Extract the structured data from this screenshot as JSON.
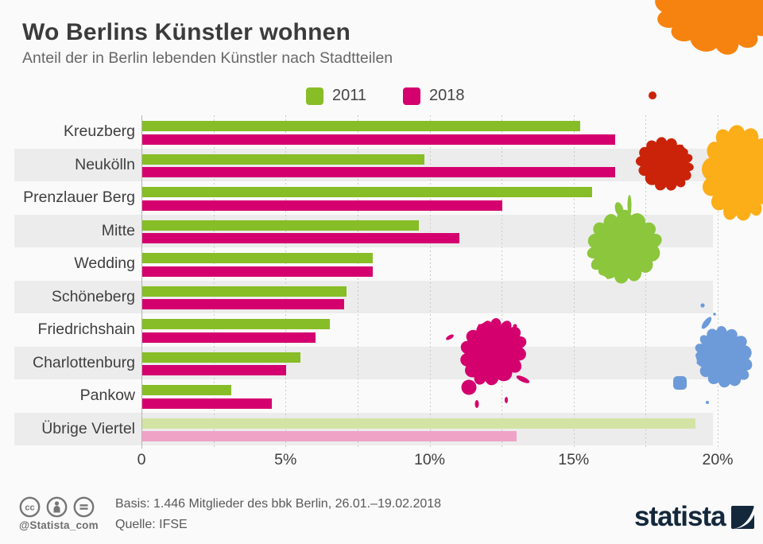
{
  "title": "Wo Berlins Künstler wohnen",
  "subtitle": "Anteil der in Berlin lebenden Künstler nach Stadtteilen",
  "legend": [
    {
      "label": "2011",
      "color": "#87bd27"
    },
    {
      "label": "2018",
      "color": "#d4006e"
    }
  ],
  "chart_data": {
    "type": "bar",
    "orientation": "horizontal",
    "categories": [
      "Kreuzberg",
      "Neukölln",
      "Prenzlauer Berg",
      "Mitte",
      "Wedding",
      "Schöneberg",
      "Friedrichshain",
      "Charlottenburg",
      "Pankow",
      "Übrige Viertel"
    ],
    "series": [
      {
        "name": "2011",
        "values": [
          15.2,
          9.8,
          15.6,
          9.6,
          8.0,
          7.1,
          6.5,
          5.5,
          3.1,
          19.2
        ]
      },
      {
        "name": "2018",
        "values": [
          16.4,
          16.4,
          12.5,
          11.0,
          8.0,
          7.0,
          6.0,
          5.0,
          4.5,
          13.0
        ]
      }
    ],
    "xlim": [
      0,
      20
    ],
    "x_ticks": [
      "0",
      "5%",
      "10%",
      "15%",
      "20%"
    ],
    "x_tick_values": [
      0,
      5,
      10,
      15,
      20
    ],
    "gridline_step": 2.5,
    "muted_last_category": true,
    "legend_position": "top",
    "note": "letzte Kategorie (Übrige Viertel) in abgeschwächten Farben dargestellt"
  },
  "colors": {
    "series": {
      "2011": "#87bd27",
      "2018": "#d4006e"
    },
    "muted": {
      "2011": "#d3e3a4",
      "2018": "#f0a2c6"
    },
    "row_band": "#ececec",
    "background": "#fafafa",
    "splat_orange": "#f6830f",
    "splat_red": "#cb2309",
    "splat_yellow": "#fbae17",
    "splat_green": "#8cc63c",
    "splat_pink": "#d4006e",
    "splat_blue": "#6d9bd9",
    "brand_navy": "#14283c"
  },
  "footer": {
    "handle": "@Statista_com",
    "basis": "Basis: 1.446 Mitglieder des bbk Berlin, 26.01.–19.02.2018",
    "source": "Quelle: IFSE",
    "brand": "statista",
    "license_icons": [
      "cc-icon",
      "attribution-person-icon",
      "no-derivatives-equals-icon"
    ]
  }
}
